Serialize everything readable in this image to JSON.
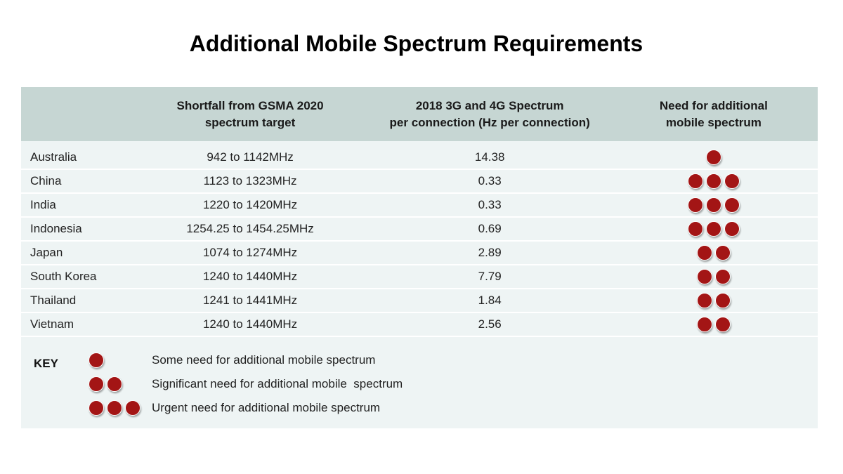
{
  "title": "Additional Mobile Spectrum Requirements",
  "colors": {
    "header_bg": "#c6d6d3",
    "row_bg": "#eef4f4",
    "dot": "#a31515"
  },
  "table": {
    "headers": [
      "",
      "Shortfall from GSMA 2020 spectrum target",
      "2018 3G and 4G Spectrum per connection (Hz per connection)",
      "Need for additional mobile spectrum"
    ],
    "header_lines": {
      "shortfall": [
        "Shortfall from GSMA 2020",
        "spectrum target"
      ],
      "per_connection": [
        "2018 3G and 4G Spectrum",
        "per connection (Hz per connection)"
      ],
      "need": [
        "Need for additional",
        "mobile spectrum"
      ]
    },
    "rows": [
      {
        "country": "Australia",
        "shortfall": "942 to 1142MHz",
        "per_connection": "14.38",
        "need": 1
      },
      {
        "country": "China",
        "shortfall": "1123 to 1323MHz",
        "per_connection": "0.33",
        "need": 3
      },
      {
        "country": "India",
        "shortfall": "1220 to 1420MHz",
        "per_connection": "0.33",
        "need": 3
      },
      {
        "country": "Indonesia",
        "shortfall": "1254.25 to 1454.25MHz",
        "per_connection": "0.69",
        "need": 3
      },
      {
        "country": "Japan",
        "shortfall": "1074 to 1274MHz",
        "per_connection": "2.89",
        "need": 2
      },
      {
        "country": "South Korea",
        "shortfall": "1240 to 1440MHz",
        "per_connection": "7.79",
        "need": 2
      },
      {
        "country": "Thailand",
        "shortfall": "1241 to 1441MHz",
        "per_connection": "1.84",
        "need": 2
      },
      {
        "country": "Vietnam",
        "shortfall": "1240 to 1440MHz",
        "per_connection": "2.56",
        "need": 2
      }
    ]
  },
  "key": {
    "label": "KEY",
    "items": [
      {
        "dots": 1,
        "text": "Some need for additional mobile spectrum"
      },
      {
        "dots": 2,
        "text": "Significant need for additional mobile  spectrum"
      },
      {
        "dots": 3,
        "text": "Urgent need for additional mobile spectrum"
      }
    ]
  }
}
